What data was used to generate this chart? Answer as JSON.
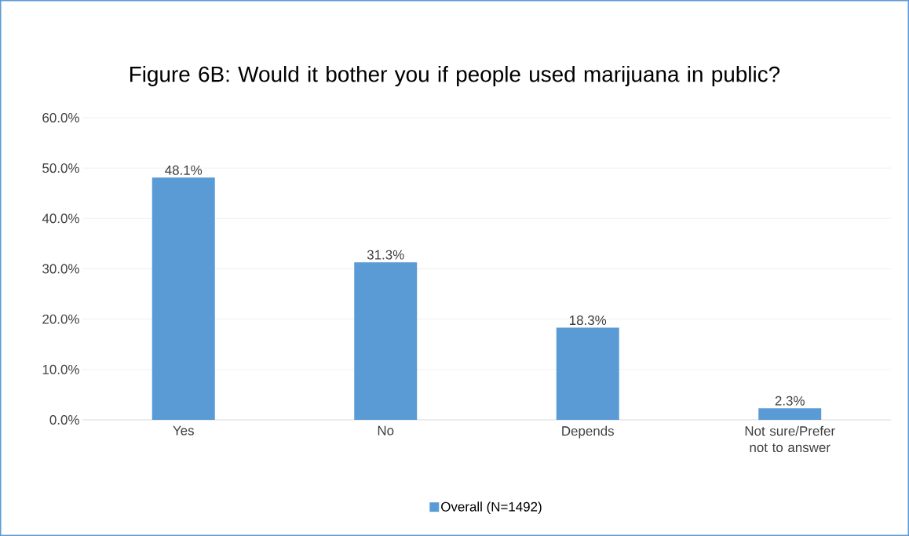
{
  "chart_data": {
    "type": "bar",
    "title": "Figure 6B: Would it bother you if people used marijuana in public?",
    "categories": [
      "Yes",
      "No",
      "Depends",
      "Not sure/Prefer not to answer"
    ],
    "series": [
      {
        "name": "Overall (N=1492)",
        "color": "#5b9bd5",
        "values": [
          48.1,
          31.3,
          18.3,
          2.3
        ],
        "value_labels": [
          "48.1%",
          "31.3%",
          "18.3%",
          "2.3%"
        ]
      }
    ],
    "ylim": [
      0,
      60
    ],
    "yticks": [
      {
        "value": 0,
        "label": "0.0%"
      },
      {
        "value": 10,
        "label": "10.0%"
      },
      {
        "value": 20,
        "label": "20.0%"
      },
      {
        "value": 30,
        "label": "30.0%"
      },
      {
        "value": 40,
        "label": "40.0%"
      },
      {
        "value": 50,
        "label": "50.0%"
      },
      {
        "value": 60,
        "label": "60.0%"
      }
    ],
    "grid": "y",
    "legend": "bottom"
  }
}
